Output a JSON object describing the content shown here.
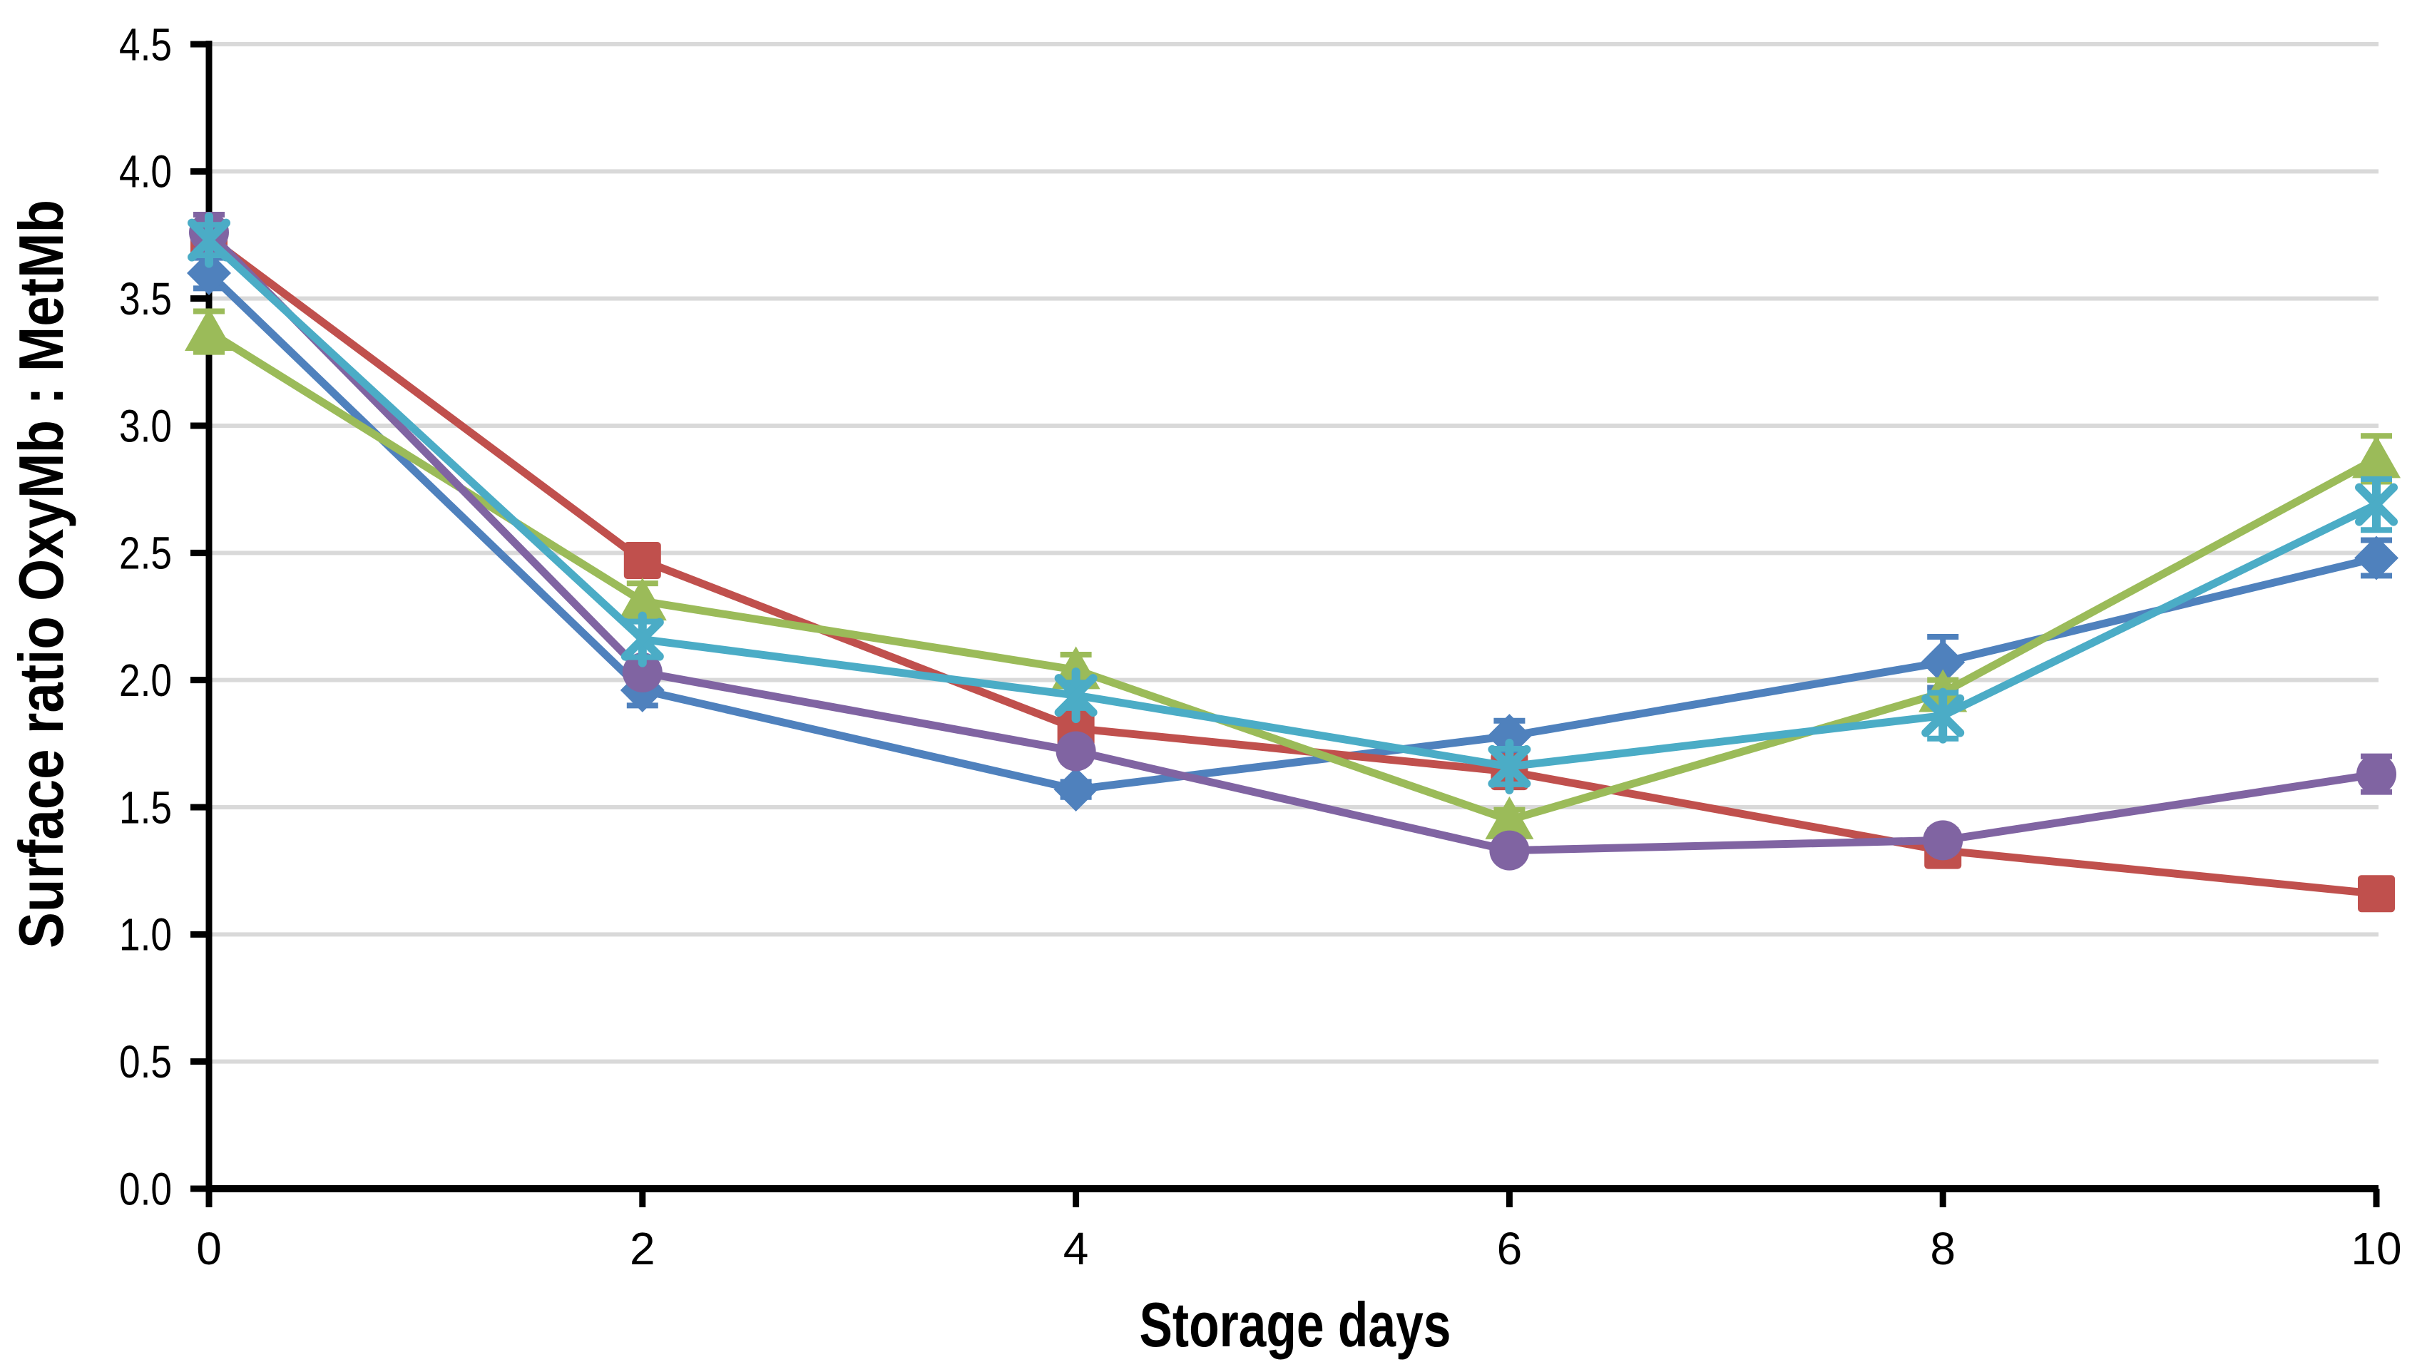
{
  "chart_data": {
    "type": "line",
    "title": "",
    "xlabel": "Storage days",
    "ylabel": "Surface ratio OxyMb : MetMb",
    "x": [
      0,
      2,
      4,
      6,
      8,
      10
    ],
    "xticks": [
      0,
      2,
      4,
      6,
      8,
      10
    ],
    "xtick_labels": [
      "0",
      "2",
      "4",
      "6",
      "8",
      "10"
    ],
    "xlim": [
      0,
      10
    ],
    "ylim": [
      0,
      4.5
    ],
    "ytick_step": 0.5,
    "ytick_labels": [
      "0.0",
      "0.5",
      "1.0",
      "1.5",
      "2.0",
      "2.5",
      "3.0",
      "3.5",
      "4.0",
      "4.5"
    ],
    "grid": "horizontal-only",
    "legend_position": "none",
    "background_color": "#ffffff",
    "gridline_color": "#d9d9d9",
    "axis_color": "#000000",
    "error_bars": true,
    "series": [
      {
        "name": "series-blue-diamond",
        "marker": "diamond",
        "color": "#4F81BD",
        "values": [
          3.6,
          1.96,
          1.57,
          1.78,
          2.07,
          2.48
        ],
        "errors": [
          0.06,
          0.06,
          0.03,
          0.06,
          0.1,
          0.07
        ]
      },
      {
        "name": "series-red-square",
        "marker": "square",
        "color": "#C0504D",
        "values": [
          3.74,
          2.47,
          1.81,
          1.64,
          1.33,
          1.16
        ],
        "errors": [
          0.05,
          0.03,
          0.03,
          0.04,
          0.04,
          0.03
        ]
      },
      {
        "name": "series-green-triangle",
        "marker": "triangle",
        "color": "#9BBB59",
        "values": [
          3.37,
          2.31,
          2.04,
          1.45,
          1.95,
          2.87
        ],
        "errors": [
          0.08,
          0.07,
          0.06,
          0.04,
          0.05,
          0.09
        ]
      },
      {
        "name": "series-purple-circle",
        "marker": "circle",
        "color": "#8064A2",
        "values": [
          3.76,
          2.03,
          1.72,
          1.33,
          1.37,
          1.63
        ],
        "errors": [
          0.07,
          0.04,
          0.04,
          0.03,
          0.04,
          0.07
        ]
      },
      {
        "name": "series-cyan-asterisk",
        "marker": "asterisk",
        "color": "#4BACC6",
        "values": [
          3.73,
          2.16,
          1.94,
          1.66,
          1.86,
          2.69
        ],
        "errors": [
          0.06,
          0.07,
          0.05,
          0.07,
          0.09,
          0.1
        ]
      }
    ]
  }
}
